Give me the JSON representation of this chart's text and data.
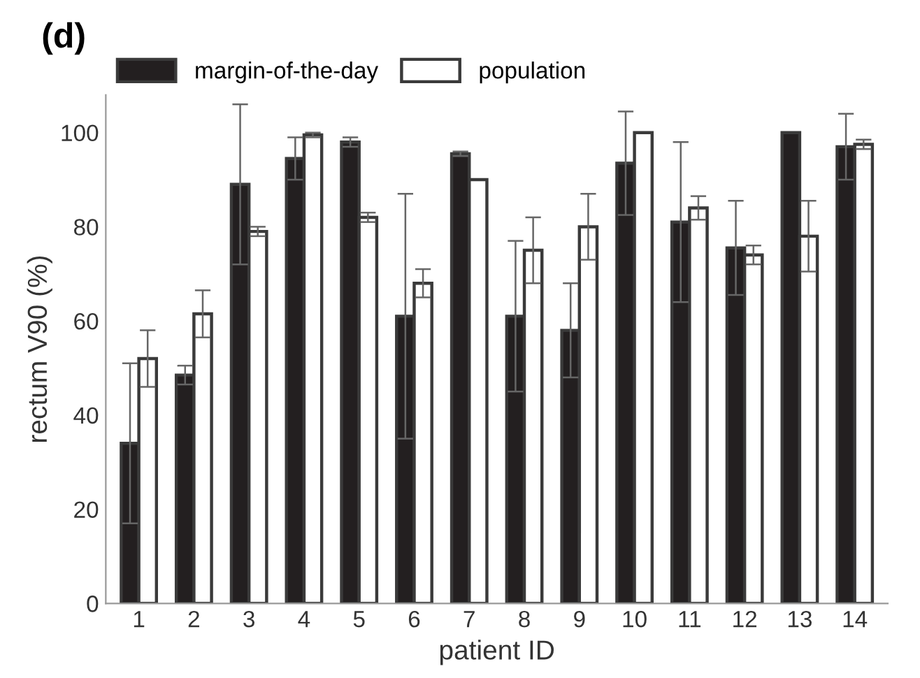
{
  "chart_data": {
    "type": "bar",
    "title": "(d)",
    "xlabel": "patient ID",
    "ylabel": "rectum V90 (%)",
    "categories": [
      "1",
      "2",
      "3",
      "4",
      "5",
      "6",
      "7",
      "8",
      "9",
      "10",
      "11",
      "12",
      "13",
      "14"
    ],
    "series": [
      {
        "name": "margin-of-the-day",
        "color": "#231f20",
        "values": [
          34,
          48.5,
          89,
          94.5,
          98,
          61,
          95.5,
          61,
          58,
          93.5,
          81,
          75.5,
          100,
          97
        ],
        "errors": [
          17,
          2,
          17,
          4.5,
          1,
          26,
          0.5,
          16,
          10,
          11,
          17,
          10,
          null,
          7
        ]
      },
      {
        "name": "population",
        "color": "#ffffff",
        "values": [
          52,
          61.5,
          79,
          99.5,
          82,
          68,
          90,
          75,
          80,
          100,
          84,
          74,
          78,
          97.5
        ],
        "errors": [
          6,
          5,
          1,
          0.5,
          1,
          3,
          null,
          7,
          7,
          null,
          2.5,
          2,
          7.5,
          1
        ]
      }
    ],
    "ylim": [
      0,
      108
    ],
    "yticks": [
      0,
      20,
      40,
      60,
      80,
      100
    ],
    "grid": false,
    "legend": "top"
  }
}
